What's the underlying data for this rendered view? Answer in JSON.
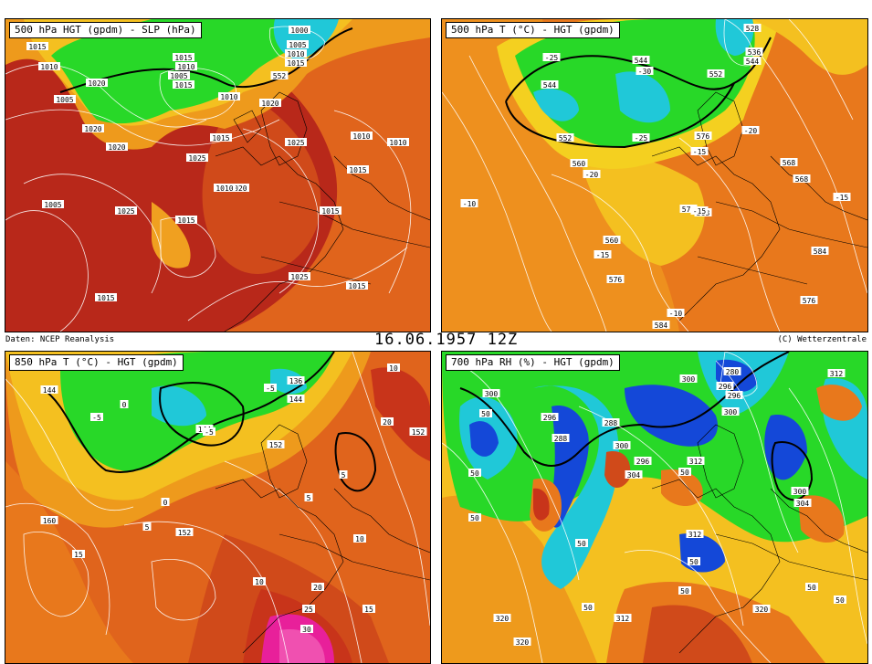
{
  "header": {
    "source": "Daten: NCEP Reanalysis",
    "date": "16.06.1957 12Z",
    "copyright": "(C) Wetterzentrale"
  },
  "panels": [
    {
      "title": "500 hPa HGT (gpdm) - SLP (hPa)",
      "labels": [
        "1015",
        "1010",
        "1005",
        "1020",
        "1015",
        "1010",
        "1005",
        "1010",
        "1000",
        "1005",
        "1010",
        "1015",
        "1015",
        "552",
        "1020",
        "1020",
        "1015",
        "1020",
        "1025",
        "1025",
        "1005",
        "1010",
        "1010",
        "1015",
        "1020",
        "1015",
        "1025",
        "1020",
        "1015",
        "1015",
        "1015",
        "1025",
        "1010",
        "1015"
      ]
    },
    {
      "title": "500 hPa T (°C) - HGT (gpdm)",
      "labels": [
        "-25",
        "-30",
        "544",
        "528",
        "536",
        "544",
        "552",
        "544",
        "-25",
        "552",
        "-20",
        "576",
        "-15",
        "560",
        "-20",
        "568",
        "560",
        "568",
        "-10",
        "568",
        "-15",
        "576",
        "-15",
        "576",
        "-10",
        "584",
        "584",
        "576",
        "-15"
      ]
    },
    {
      "title": "850 hPa T (°C) - HGT (gpdm)",
      "labels": [
        "144",
        "136",
        "-5",
        "144",
        "144",
        "-5",
        "0",
        "5",
        "10",
        "20",
        "152",
        "5",
        "152",
        "0",
        "5",
        "-5",
        "160",
        "15",
        "152",
        "10",
        "20",
        "25",
        "15",
        "30",
        "10"
      ]
    },
    {
      "title": "700 hPa RH (%) - HGT (gpdm)",
      "labels": [
        "300",
        "300",
        "280",
        "288",
        "296",
        "312",
        "296",
        "296",
        "300",
        "50",
        "288",
        "300",
        "296",
        "304",
        "312",
        "50",
        "300",
        "304",
        "50",
        "50",
        "312",
        "50",
        "50",
        "50",
        "50",
        "50",
        "320",
        "312",
        "320",
        "320",
        "50"
      ]
    }
  ],
  "colors": {
    "sea_deep": "#b5261a",
    "warm": "#d9481c",
    "orange": "#ee8a1c",
    "yellow": "#f4d020",
    "green": "#28d828",
    "cyan": "#20c8d8",
    "blue": "#1448d8",
    "magenta": "#e8209a"
  }
}
